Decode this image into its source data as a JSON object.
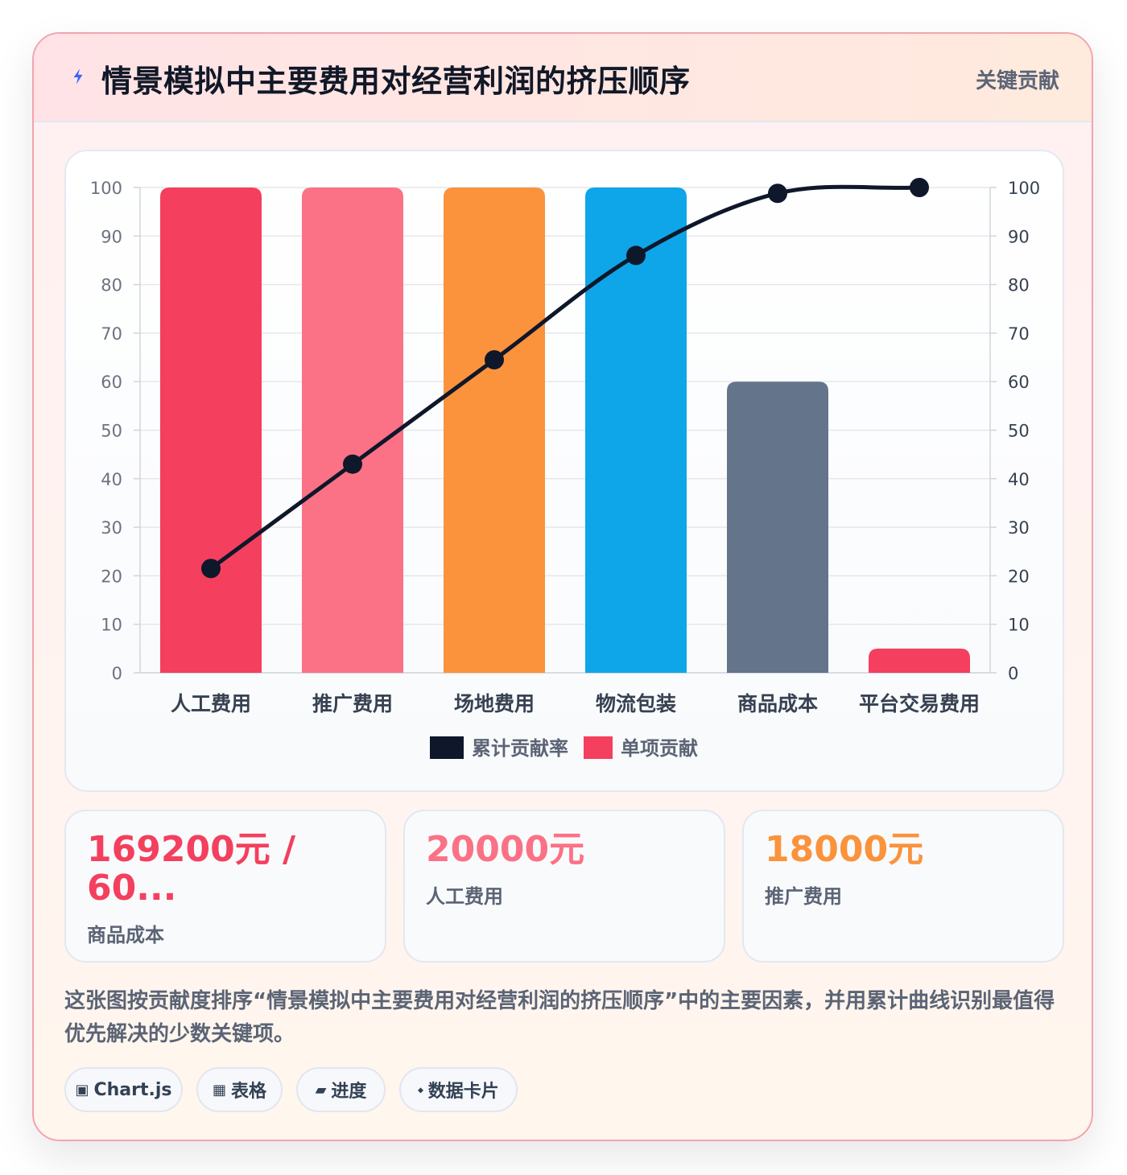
{
  "header": {
    "icon": "lightning-icon",
    "title": "情景模拟中主要费用对经营利润的挤压顺序",
    "tag": "关键贡献"
  },
  "chart_data": {
    "type": "bar",
    "categories": [
      "人工费用",
      "推广费用",
      "场地费用",
      "物流包装",
      "商品成本",
      "平台交易费用"
    ],
    "series": [
      {
        "name": "单项贡献",
        "type": "bar",
        "values": [
          100,
          100,
          100,
          100,
          60,
          5
        ],
        "colors": [
          "#f43f5e",
          "#fb7185",
          "#fb923c",
          "#0ea5e9",
          "#64748b",
          "#f43f5e"
        ]
      },
      {
        "name": "累计贡献率",
        "type": "line",
        "values": [
          21.5,
          43,
          64.5,
          86,
          98.8,
          100
        ],
        "color": "#0f172a"
      }
    ],
    "ylim": [
      0,
      100
    ],
    "y_ticks": [
      0,
      10,
      20,
      30,
      40,
      50,
      60,
      70,
      80,
      90,
      100
    ],
    "y2lim": [
      0,
      100
    ],
    "y2_ticks": [
      0,
      10,
      20,
      30,
      40,
      50,
      60,
      70,
      80,
      90,
      100
    ],
    "legend": {
      "placement": "bottom",
      "order": [
        "累计贡献率",
        "单项贡献"
      ]
    },
    "grid": true
  },
  "stats": [
    {
      "value": "169200元 / 60...",
      "label": "商品成本",
      "color": "#f43f5e"
    },
    {
      "value": "20000元",
      "label": "人工费用",
      "color": "#fb7185"
    },
    {
      "value": "18000元",
      "label": "推广费用",
      "color": "#fb923c"
    }
  ],
  "description": "这张图按贡献度排序“情景模拟中主要费用对经营利润的挤压顺序”中的主要因素，并用累计曲线识别最值得优先解决的少数关键项。",
  "chips": [
    {
      "icon": "▣",
      "label": "Chart.js"
    },
    {
      "icon": "▦",
      "label": "表格"
    },
    {
      "icon": "▰",
      "label": "进度"
    },
    {
      "icon": "⬩",
      "label": "数据卡片"
    }
  ]
}
